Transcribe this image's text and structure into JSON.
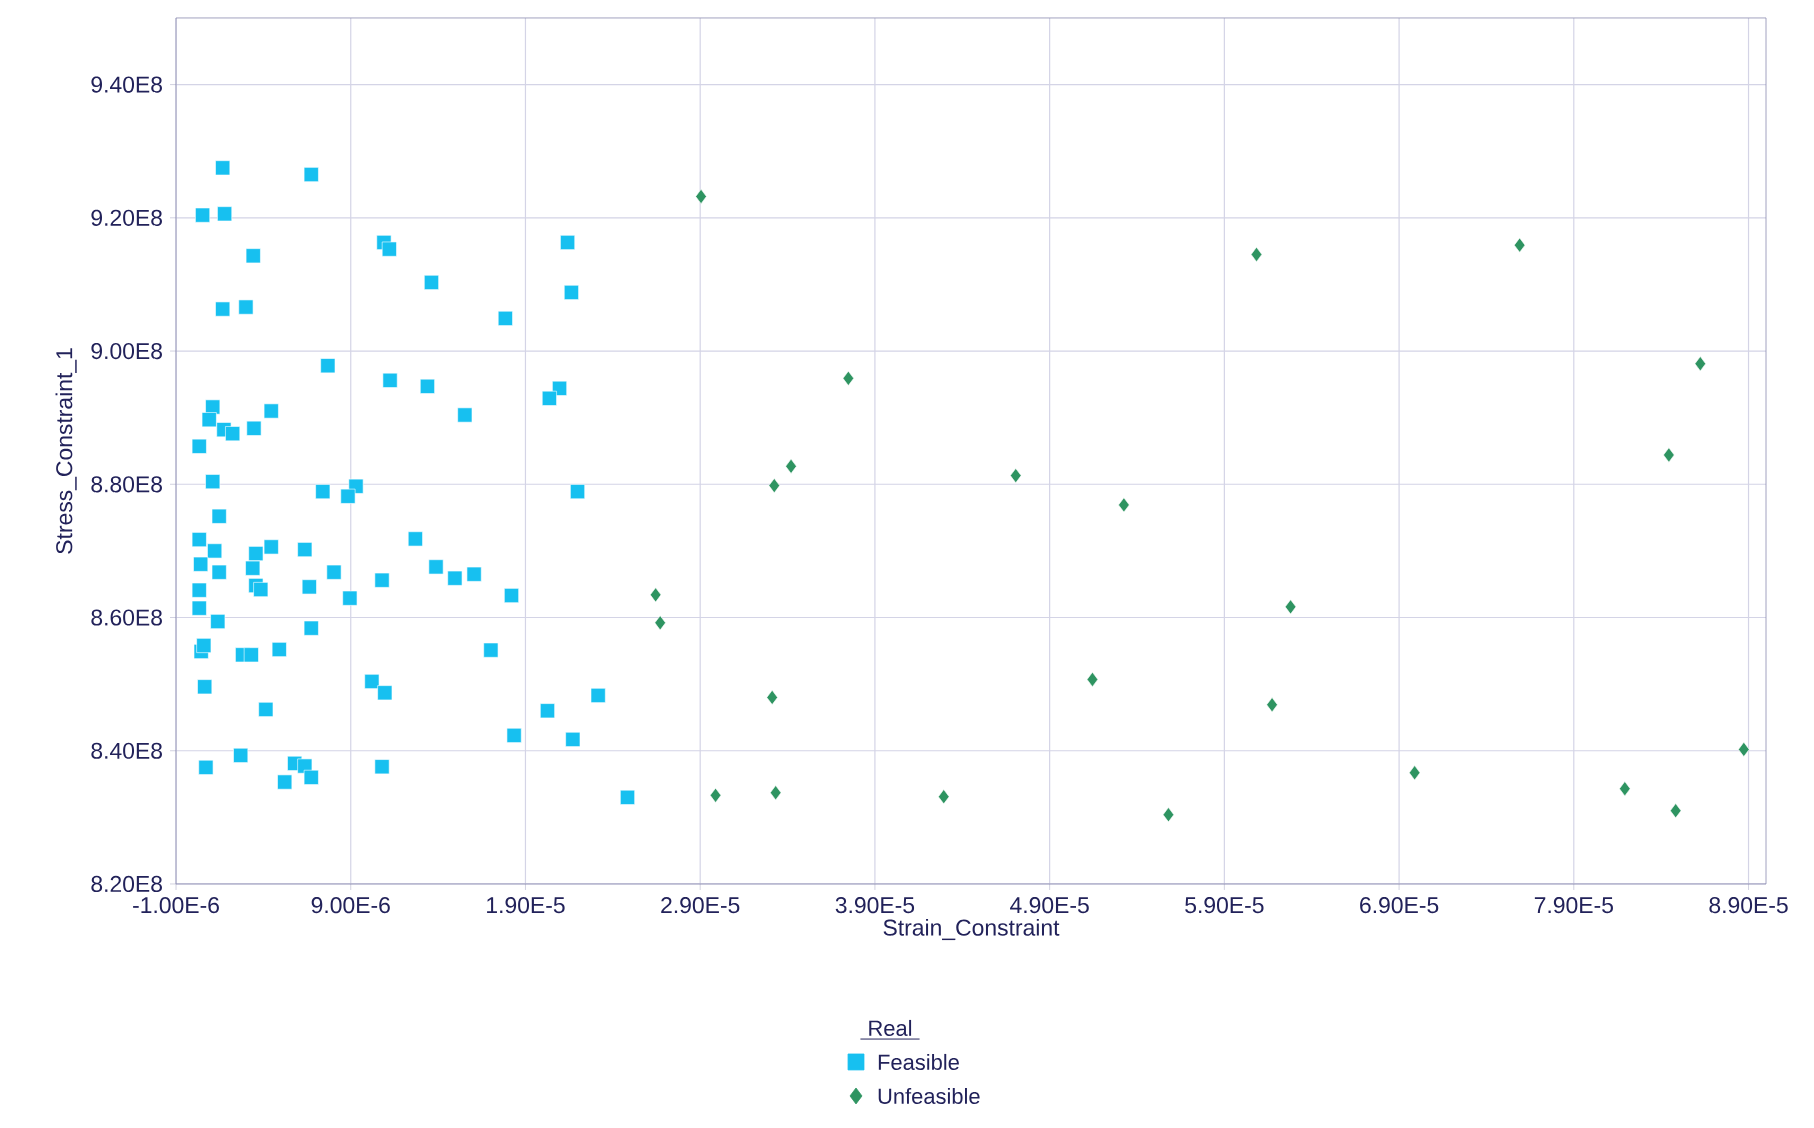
{
  "chart_data": {
    "type": "scatter",
    "xlabel": "Strain_Constraint",
    "ylabel": "Stress_Constraint_1",
    "legend_title": "Real",
    "legend": "bottom",
    "grid": true,
    "xlim": [
      -1e-06,
      9e-05
    ],
    "ylim": [
      820000000,
      950000000
    ],
    "xticks": [
      {
        "value": -1e-06,
        "label": "-1.00E-6"
      },
      {
        "value": 9e-06,
        "label": "9.00E-6"
      },
      {
        "value": 1.9e-05,
        "label": "1.90E-5"
      },
      {
        "value": 2.9e-05,
        "label": "2.90E-5"
      },
      {
        "value": 3.9e-05,
        "label": "3.90E-5"
      },
      {
        "value": 4.9e-05,
        "label": "4.90E-5"
      },
      {
        "value": 5.9e-05,
        "label": "5.90E-5"
      },
      {
        "value": 6.9e-05,
        "label": "6.90E-5"
      },
      {
        "value": 7.9e-05,
        "label": "7.90E-5"
      },
      {
        "value": 8.9e-05,
        "label": "8.90E-5"
      }
    ],
    "yticks": [
      {
        "value": 820000000,
        "label": "8.20E8"
      },
      {
        "value": 840000000,
        "label": "8.40E8"
      },
      {
        "value": 860000000,
        "label": "8.60E8"
      },
      {
        "value": 880000000,
        "label": "8.80E8"
      },
      {
        "value": 900000000,
        "label": "9.00E8"
      },
      {
        "value": 920000000,
        "label": "9.20E8"
      },
      {
        "value": 940000000,
        "label": "9.40E8"
      }
    ],
    "series": [
      {
        "name": "Feasible",
        "color": "#17c0f0",
        "marker": "square",
        "x": [
          1.67e-06,
          6.74e-06,
          5.2e-07,
          1.78e-06,
          3.42e-06,
          1.67e-06,
          3e-06,
          7.69e-06,
          1.1e-06,
          9e-07,
          1.74e-06,
          2.24e-06,
          3.46e-06,
          4.45e-06,
          3.3e-07,
          1.1e-06,
          7.4e-06,
          9.3e-06,
          8.84e-06,
          1.553e-05,
          1.09e-05,
          1.121e-05,
          1.362e-05,
          1.125e-05,
          1.339e-05,
          2.141e-05,
          2.163e-05,
          1.785e-05,
          2.095e-05,
          2.037e-05,
          2.198e-05,
          1.27e-05,
          1.388e-05,
          1.496e-05,
          1.606e-05,
          1.079e-05,
          8.95e-06,
          1.82e-05,
          1.702e-05,
          1.021e-05,
          1.095e-05,
          2.026e-05,
          2.316e-05,
          1.835e-05,
          2.171e-05,
          1.079e-05,
          2.484e-05,
          1.47e-06,
          3.3e-07,
          1.21e-06,
          3.57e-06,
          4.45e-06,
          6.37e-06,
          4.1e-07,
          1.47e-06,
          3.39e-06,
          3.57e-06,
          3.85e-06,
          6.63e-06,
          8.04e-06,
          3.3e-07,
          3.3e-07,
          1.39e-06,
          6.74e-06,
          4.4e-07,
          5.9e-07,
          2.81e-06,
          3.31e-06,
          4.91e-06,
          6.4e-07,
          4.14e-06,
          2.7e-06,
          7.1e-07,
          5.79e-06,
          6.37e-06,
          6.74e-06,
          5.22e-06
        ],
        "values": [
          927500000,
          926500000,
          920400000,
          920600000,
          914300000,
          906300000,
          906600000,
          897800000,
          891600000,
          889700000,
          888200000,
          887600000,
          888400000,
          891000000,
          885700000,
          880400000,
          878900000,
          879700000,
          878200000,
          890400000,
          916300000,
          915300000,
          910300000,
          895600000,
          894700000,
          916300000,
          908800000,
          904900000,
          894400000,
          892900000,
          878900000,
          871800000,
          867600000,
          865900000,
          866500000,
          865600000,
          862900000,
          863300000,
          855100000,
          850400000,
          848700000,
          846000000,
          848300000,
          842300000,
          841700000,
          837600000,
          833000000,
          875200000,
          871700000,
          870000000,
          869600000,
          870600000,
          870200000,
          868000000,
          866800000,
          867400000,
          864800000,
          864200000,
          864600000,
          866800000,
          864100000,
          861400000,
          859400000,
          858400000,
          854900000,
          855800000,
          854400000,
          854400000,
          855200000,
          849600000,
          846200000,
          839300000,
          837500000,
          838100000,
          837700000,
          836000000,
          835300000
        ]
      },
      {
        "name": "Unfeasible",
        "color": "#2e9461",
        "marker": "diamond",
        "x": [
          2.645e-05,
          2.671e-05,
          2.905e-05,
          3.748e-05,
          3.42e-05,
          3.324e-05,
          4.706e-05,
          5.325e-05,
          3.312e-05,
          5.145e-05,
          2.988e-05,
          3.332e-05,
          4.294e-05,
          5.58e-05,
          6.084e-05,
          7.59e-05,
          8.624e-05,
          8.444e-05,
          6.279e-05,
          6.173e-05,
          6.989e-05,
          8.192e-05,
          8.483e-05,
          8.873e-05
        ],
        "values": [
          863400000,
          859200000,
          923200000,
          895900000,
          882700000,
          879800000,
          881300000,
          876900000,
          848000000,
          850700000,
          833300000,
          833700000,
          833100000,
          830400000,
          914500000,
          915900000,
          898100000,
          884400000,
          861600000,
          846900000,
          836700000,
          834300000,
          831000000,
          840200000
        ]
      }
    ]
  }
}
